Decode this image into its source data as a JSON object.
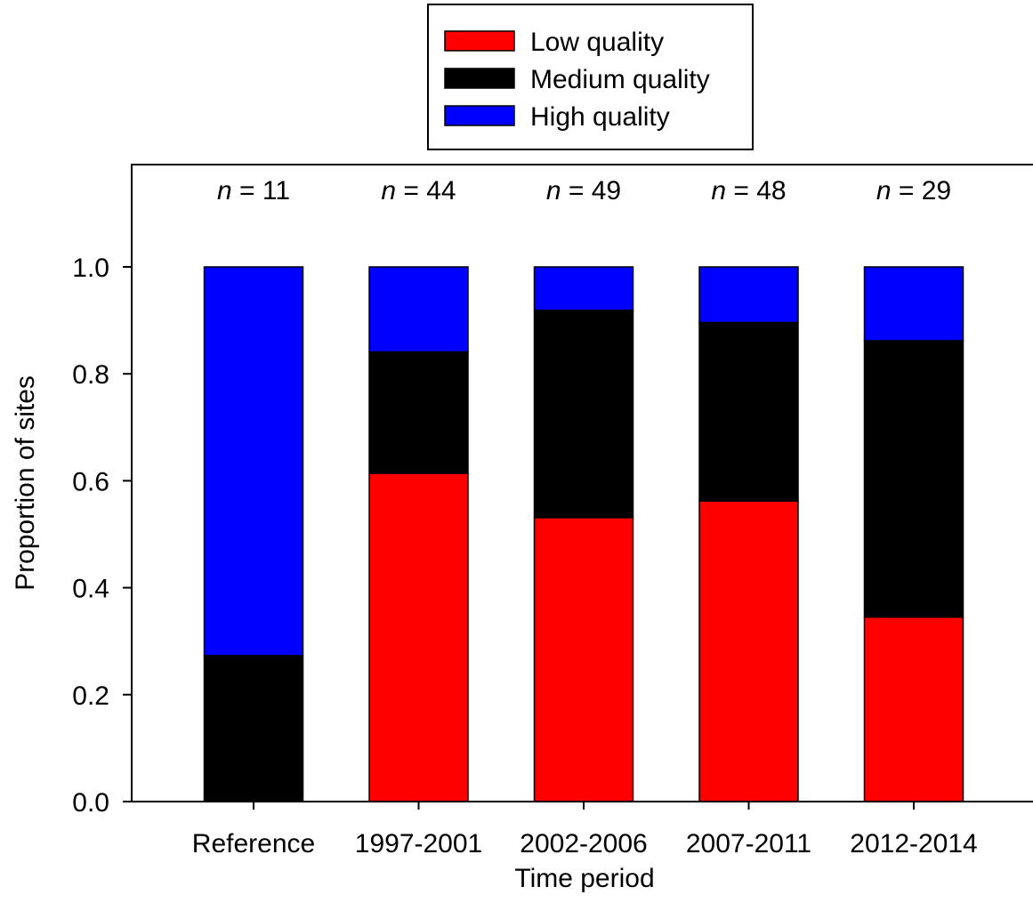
{
  "chart_data": {
    "type": "bar",
    "stacked": true,
    "categories": [
      "Reference",
      "1997-2001",
      "2002-2006",
      "2007-2011",
      "2012-2014"
    ],
    "series": [
      {
        "name": "Low quality",
        "color": "#ff0000",
        "values": [
          0.0,
          0.614,
          0.531,
          0.562,
          0.345
        ]
      },
      {
        "name": "Medium quality",
        "color": "#000000",
        "values": [
          0.273,
          0.227,
          0.388,
          0.334,
          0.517
        ]
      },
      {
        "name": "High quality",
        "color": "#0000ff",
        "values": [
          0.727,
          0.159,
          0.081,
          0.104,
          0.138
        ]
      }
    ],
    "sample_sizes": [
      "11",
      "44",
      "49",
      "48",
      "29"
    ],
    "n_symbol": "n",
    "n_equals": " = ",
    "xlabel": "Time period",
    "ylabel": "Proportion of sites",
    "ylim": [
      0,
      1.1
    ],
    "yticks": [
      "0.0",
      "0.2",
      "0.4",
      "0.6",
      "0.8",
      "1.0"
    ],
    "legend_position": "top-center",
    "grid": false
  }
}
